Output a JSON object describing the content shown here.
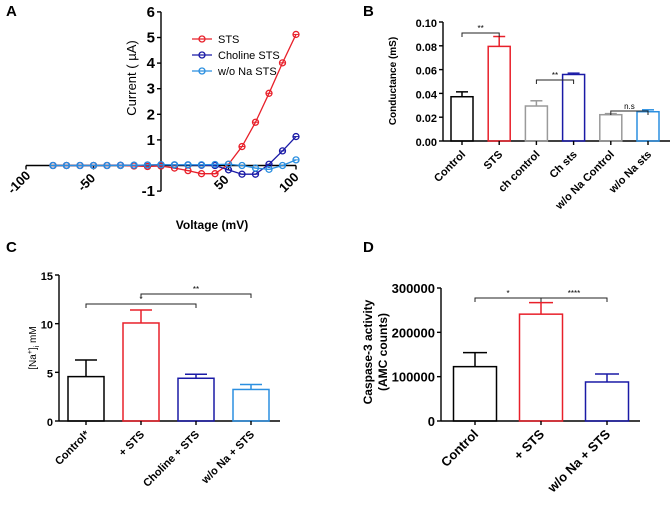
{
  "panels": {
    "A": "A",
    "B": "B",
    "C": "C",
    "D": "D"
  },
  "chart_data": [
    {
      "id": "A",
      "type": "line",
      "title": "",
      "xlabel": "Voltage (mV)",
      "ylabel": "Current ( µA)",
      "xlim": [
        -100,
        100
      ],
      "ylim": [
        -1,
        6
      ],
      "xticks": [
        -100,
        -50,
        50,
        100
      ],
      "xtick_labels": [
        "-100",
        "-50",
        "50",
        "100"
      ],
      "yticks": [
        -1,
        1,
        2,
        3,
        4,
        5,
        6
      ],
      "ytick_labels": [
        "-1",
        "1",
        "2",
        "3",
        "4",
        "5",
        "6"
      ],
      "legend_position": "top-right",
      "x": [
        -80,
        -70,
        -60,
        -50,
        -40,
        -30,
        -20,
        -10,
        0,
        10,
        20,
        30,
        40,
        50,
        60,
        70,
        80,
        90,
        100
      ],
      "series": [
        {
          "name": "STS",
          "color": "#e8202a",
          "values": [
            0.0,
            0.0,
            0.0,
            0.0,
            0.0,
            0.0,
            -0.02,
            -0.04,
            -0.02,
            -0.1,
            -0.2,
            -0.32,
            -0.32,
            0.05,
            0.74,
            1.69,
            2.82,
            4.01,
            5.12
          ]
        },
        {
          "name": "Choline STS",
          "color": "#1a1aa6",
          "values": [
            0.0,
            0.0,
            0.0,
            0.0,
            0.0,
            0.01,
            0.01,
            0.02,
            0.03,
            0.02,
            0.02,
            0.01,
            0.0,
            -0.17,
            -0.34,
            -0.34,
            0.05,
            0.57,
            1.13
          ]
        },
        {
          "name": "w/o Na STS",
          "color": "#2b8fe0",
          "values": [
            0.0,
            0.0,
            0.0,
            0.0,
            0.0,
            0.0,
            0.01,
            0.02,
            0.03,
            0.03,
            0.03,
            0.03,
            0.04,
            0.05,
            0.0,
            -0.1,
            -0.15,
            0.0,
            0.22
          ]
        }
      ]
    },
    {
      "id": "B",
      "type": "bar",
      "title": "",
      "xlabel": "",
      "ylabel": "Conductance (mS)",
      "ylim": [
        0,
        0.1
      ],
      "yticks": [
        0,
        0.02,
        0.04,
        0.06,
        0.08,
        0.1
      ],
      "ytick_labels": [
        "0.00",
        "0.02",
        "0.04",
        "0.06",
        "0.08",
        "0.10"
      ],
      "categories": [
        "Control",
        "STS",
        "ch control",
        "Ch sts",
        "w/o Na Control",
        "w/o Na sts"
      ],
      "values": [
        0.0372,
        0.0795,
        0.0294,
        0.0559,
        0.0221,
        0.0246
      ],
      "errors": [
        0.0041,
        0.0083,
        0.0044,
        0.0011,
        0.0009,
        0.0016
      ],
      "colors": [
        "#000000",
        "#e8202a",
        "#9a9a9a",
        "#1a1aa6",
        "#9a9a9a",
        "#2b8fe0"
      ],
      "significance": [
        {
          "from": 0,
          "to": 1,
          "label": "**"
        },
        {
          "from": 2,
          "to": 3,
          "label": "**"
        },
        {
          "from": 4,
          "to": 5,
          "label": "n.s"
        }
      ]
    },
    {
      "id": "C",
      "type": "bar",
      "title": "",
      "xlabel": "",
      "ylabel": "[Na+]i mM",
      "ylabel_parts": {
        "pre": "[Na",
        "sup": "+",
        "post": "]",
        "sub": "i",
        "unit": " mM"
      },
      "ylim": [
        0,
        15
      ],
      "yticks": [
        0,
        5,
        10,
        15
      ],
      "ytick_labels": [
        "0",
        "5",
        "10",
        "15"
      ],
      "categories": [
        "Control*",
        "+ STS",
        "Choline + STS",
        "w/o Na + STS"
      ],
      "values": [
        4.56,
        10.07,
        4.39,
        3.24
      ],
      "errors": [
        1.71,
        1.33,
        0.41,
        0.51
      ],
      "colors": [
        "#000000",
        "#e8202a",
        "#1a1aa6",
        "#2b8fe0"
      ],
      "significance": [
        {
          "from": 0,
          "to": 2,
          "label": "*"
        },
        {
          "from": 1,
          "to": 3,
          "label": "**"
        }
      ]
    },
    {
      "id": "D",
      "type": "bar",
      "title": "",
      "xlabel": "",
      "ylabel": "Caspase-3 activity (AMC counts)",
      "ylabel_lines": [
        "Caspase-3 activity",
        "(AMC counts)"
      ],
      "ylim": [
        0,
        300000
      ],
      "yticks": [
        0,
        100000,
        200000,
        300000
      ],
      "ytick_labels": [
        "0",
        "100000",
        "200000",
        "300000"
      ],
      "categories": [
        "Control",
        "+ STS",
        "w/o Na + STS"
      ],
      "values": [
        122600,
        241000,
        88000
      ],
      "errors": [
        31700,
        26000,
        18000
      ],
      "colors": [
        "#000000",
        "#e8202a",
        "#1a1aa6"
      ],
      "significance": [
        {
          "from": 0,
          "to": 1,
          "label": "*"
        },
        {
          "from": 1,
          "to": 2,
          "label": "****"
        }
      ]
    }
  ]
}
